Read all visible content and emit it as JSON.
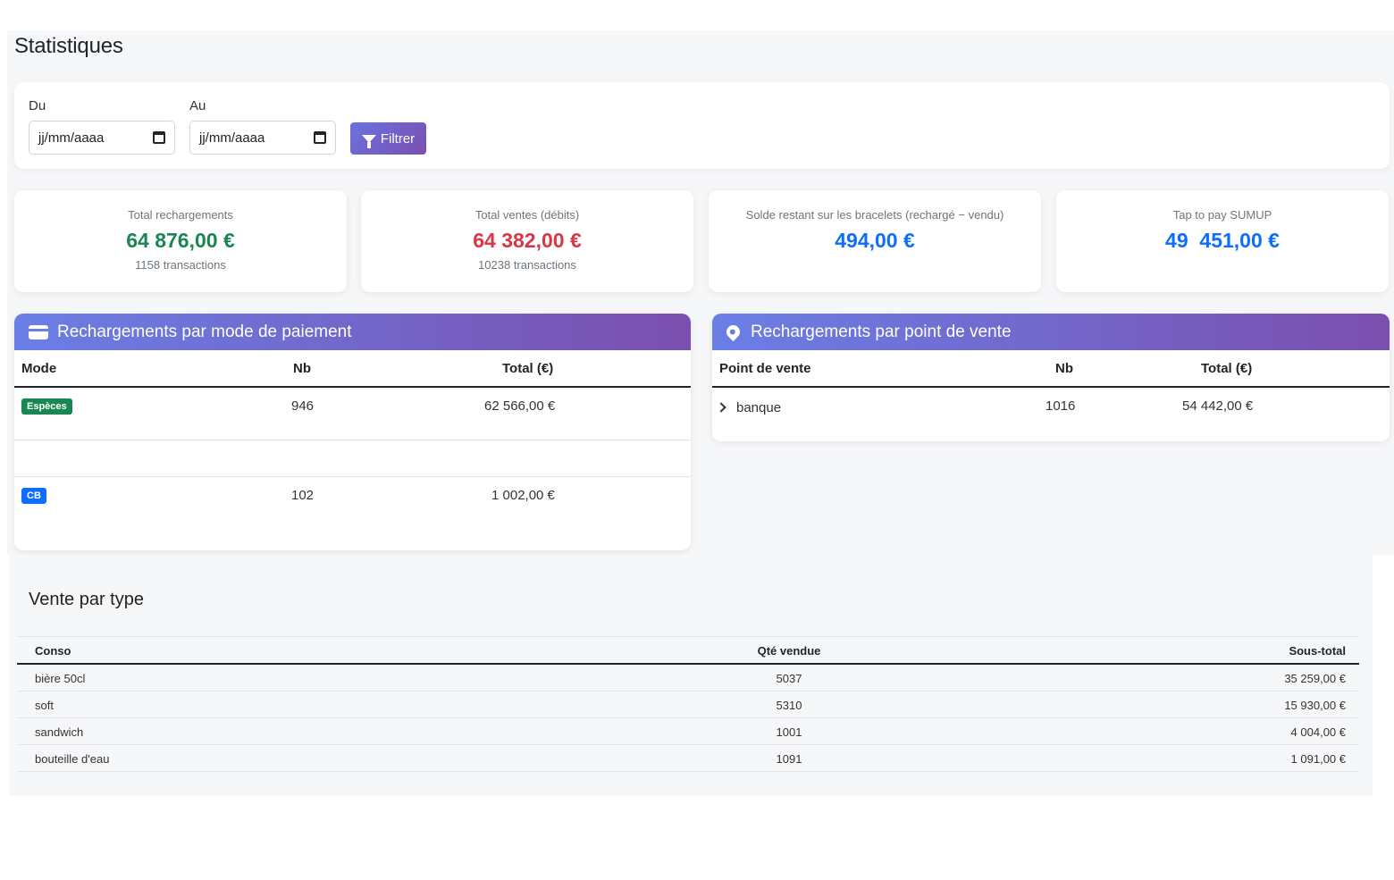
{
  "page": {
    "title": "Statistiques"
  },
  "filter": {
    "from_label": "Du",
    "to_label": "Au",
    "from_value": "jj/mm/aaaa",
    "to_value": "jj/mm/aaaa",
    "button_label": "Filtrer"
  },
  "stats": [
    {
      "label": "Total rechargements",
      "value": "64 876,00 €",
      "sub": "1158 transactions",
      "color": "#198754"
    },
    {
      "label": "Total ventes (débits)",
      "value": "64 382,00 €",
      "sub": "10238 transactions",
      "color": "#dc3545"
    },
    {
      "label": "Solde restant sur les bracelets (rechargé − vendu)",
      "value": "494,00 €",
      "sub": "",
      "color": "#0d6efd"
    },
    {
      "label": "Tap to pay SUMUP",
      "value": "49  451,00 €",
      "sub": "",
      "color": "#0d6efd"
    }
  ],
  "payment_panel": {
    "title": "Rechargements par mode de paiement",
    "icon": "credit-card-icon",
    "columns": [
      "Mode",
      "Nb",
      "Total (€)"
    ],
    "rows": [
      {
        "mode": "Espèces",
        "mode_color": "#198754",
        "nb": "946",
        "total": "62 566,00 €"
      },
      {
        "mode": "CB",
        "mode_color": "#0d6efd",
        "nb": "102",
        "total": "1 002,00 €"
      }
    ]
  },
  "pos_panel": {
    "title": "Rechargements par point de vente",
    "icon": "map-pin-icon",
    "columns": [
      "Point de vente",
      "Nb",
      "Total (€)"
    ],
    "rows": [
      {
        "name": "banque",
        "nb": "1016",
        "total": "54 442,00 €"
      }
    ]
  },
  "sales": {
    "title": "Vente par type",
    "columns": [
      "Conso",
      "Qté vendue",
      "Sous-total"
    ],
    "rows": [
      {
        "conso": "bière 50cl",
        "qty": "5037",
        "subtotal": "35 259,00 €"
      },
      {
        "conso": "soft",
        "qty": "5310",
        "subtotal": "15 930,00 €"
      },
      {
        "conso": "sandwich",
        "qty": "1001",
        "subtotal": "4 004,00 €"
      },
      {
        "conso": "bouteille d'eau",
        "qty": "1091",
        "subtotal": "1 091,00 €"
      }
    ]
  }
}
